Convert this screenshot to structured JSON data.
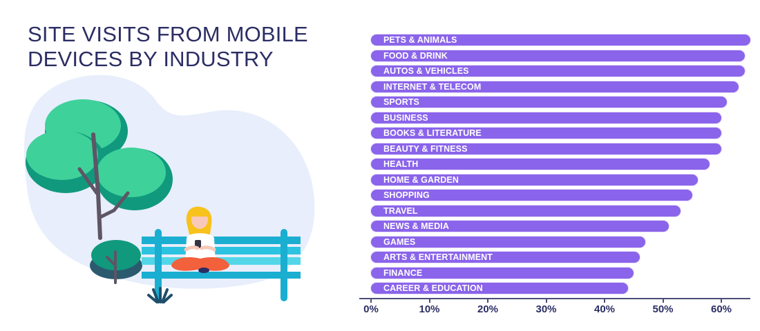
{
  "title": {
    "line1": "SITE VISITS FROM MOBILE",
    "line2": "DEVICES BY INDUSTRY"
  },
  "colors": {
    "bar": "#8a64ea",
    "title": "#2b2d64",
    "axis": "#4a4c78",
    "blob": "#e8eefb",
    "tree_light": "#3fd19a",
    "tree_dark": "#11997e",
    "bench": "#1aaed1"
  },
  "illustration": {
    "description": "woman sitting on a park bench using a phone, next to a tree and a bush"
  },
  "chart_data": {
    "type": "bar",
    "orientation": "horizontal",
    "title": "SITE VISITS FROM MOBILE DEVICES BY INDUSTRY",
    "xlabel": "",
    "ylabel": "",
    "xlim": [
      0,
      65
    ],
    "grid": false,
    "legend": null,
    "categories": [
      "PETS & ANIMALS",
      "FOOD & DRINK",
      "AUTOS & VEHICLES",
      "INTERNET & TELECOM",
      "SPORTS",
      "BUSINESS",
      "BOOKS & LITERATURE",
      "BEAUTY & FITNESS",
      "HEALTH",
      "HOME & GARDEN",
      "SHOPPING",
      "TRAVEL",
      "NEWS & MEDIA",
      "GAMES",
      "ARTS & ENTERTAINMENT",
      "FINANCE",
      "CAREER & EDUCATION"
    ],
    "values": [
      65,
      64,
      64,
      63,
      61,
      60,
      60,
      60,
      58,
      56,
      55,
      53,
      51,
      47,
      46,
      45,
      44
    ],
    "unit": "%",
    "x_ticks": [
      "0%",
      "10%",
      "20%",
      "30%",
      "40%",
      "50%",
      "60%"
    ]
  }
}
